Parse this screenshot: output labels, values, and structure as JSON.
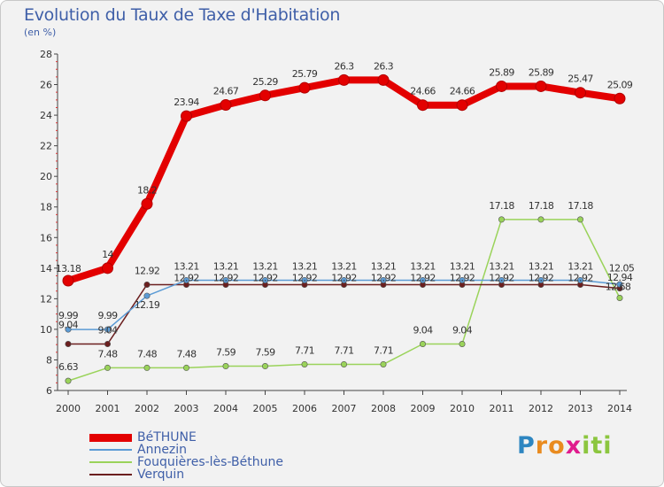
{
  "header": {
    "title": "Evolution du Taux de Taxe d'Habitation",
    "unit": "(en %)"
  },
  "branding": {
    "logo_text": "Proxiti"
  },
  "colors": {
    "bethune": "#e30000",
    "annezin": "#5b9bd5",
    "fouquieres": "#9ad35a",
    "verquin": "#6b1f1f",
    "title": "#3f5fa8"
  },
  "chart_data": {
    "type": "line",
    "title": "Evolution du Taux de Taxe d'Habitation",
    "subtitle": "(en %)",
    "xlabel": "",
    "ylabel": "",
    "x": [
      "2000",
      "2001",
      "2002",
      "2003",
      "2004",
      "2005",
      "2006",
      "2007",
      "2008",
      "2009",
      "2010",
      "2011",
      "2012",
      "2013",
      "2014"
    ],
    "ylim": [
      6,
      28
    ],
    "yticks": [
      6,
      8,
      10,
      12,
      14,
      16,
      18,
      20,
      22,
      24,
      26,
      28
    ],
    "grid": false,
    "legend_position": "bottom-left",
    "series": [
      {
        "name": "BéTHUNE",
        "color": "#e30000",
        "values": [
          13.18,
          14,
          18.2,
          23.94,
          24.67,
          25.29,
          25.79,
          26.3,
          26.3,
          24.66,
          24.66,
          25.89,
          25.89,
          25.47,
          25.09
        ],
        "labels": [
          "13.18",
          "14",
          "18.2",
          "23.94",
          "24.67",
          "25.29",
          "25.79",
          "26.3",
          "26.3",
          "24.66",
          "24.66",
          "25.89",
          "25.89",
          "25.47",
          "25.09"
        ]
      },
      {
        "name": "Annezin",
        "color": "#5b9bd5",
        "values": [
          9.99,
          9.99,
          12.19,
          13.21,
          13.21,
          13.21,
          13.21,
          13.21,
          13.21,
          13.21,
          13.21,
          13.21,
          13.21,
          13.21,
          12.94
        ],
        "labels": [
          "9.99",
          "9.99",
          "12.19",
          "13.21",
          "13.21",
          "13.21",
          "13.21",
          "13.21",
          "13.21",
          "13.21",
          "13.21",
          "13.21",
          "13.21",
          "13.21",
          "12.94"
        ]
      },
      {
        "name": "Fouquières-lès-Béthune",
        "color": "#9ad35a",
        "values": [
          6.63,
          7.48,
          7.48,
          7.48,
          7.59,
          7.59,
          7.71,
          7.71,
          7.71,
          9.04,
          9.04,
          17.18,
          17.18,
          17.18,
          12.05
        ],
        "labels": [
          "6.63",
          "7.48",
          "7.48",
          "7.48",
          "7.59",
          "7.59",
          "7.71",
          "7.71",
          "7.71",
          "9.04",
          "9.04",
          "17.18",
          "17.18",
          "17.18",
          "12.05"
        ]
      },
      {
        "name": "Verquin",
        "color": "#6b1f1f",
        "values": [
          9.04,
          9.04,
          12.92,
          12.92,
          12.92,
          12.92,
          12.92,
          12.92,
          12.92,
          12.92,
          12.92,
          12.92,
          12.92,
          12.92,
          12.68
        ],
        "labels": [
          "9.04",
          "9.04",
          "12.92",
          "12.92",
          "12.92",
          "12.92",
          "12.92",
          "12.92",
          "12.92",
          "12.92",
          "12.92",
          "12.92",
          "12.92",
          "12.92",
          "12.68"
        ]
      }
    ]
  }
}
